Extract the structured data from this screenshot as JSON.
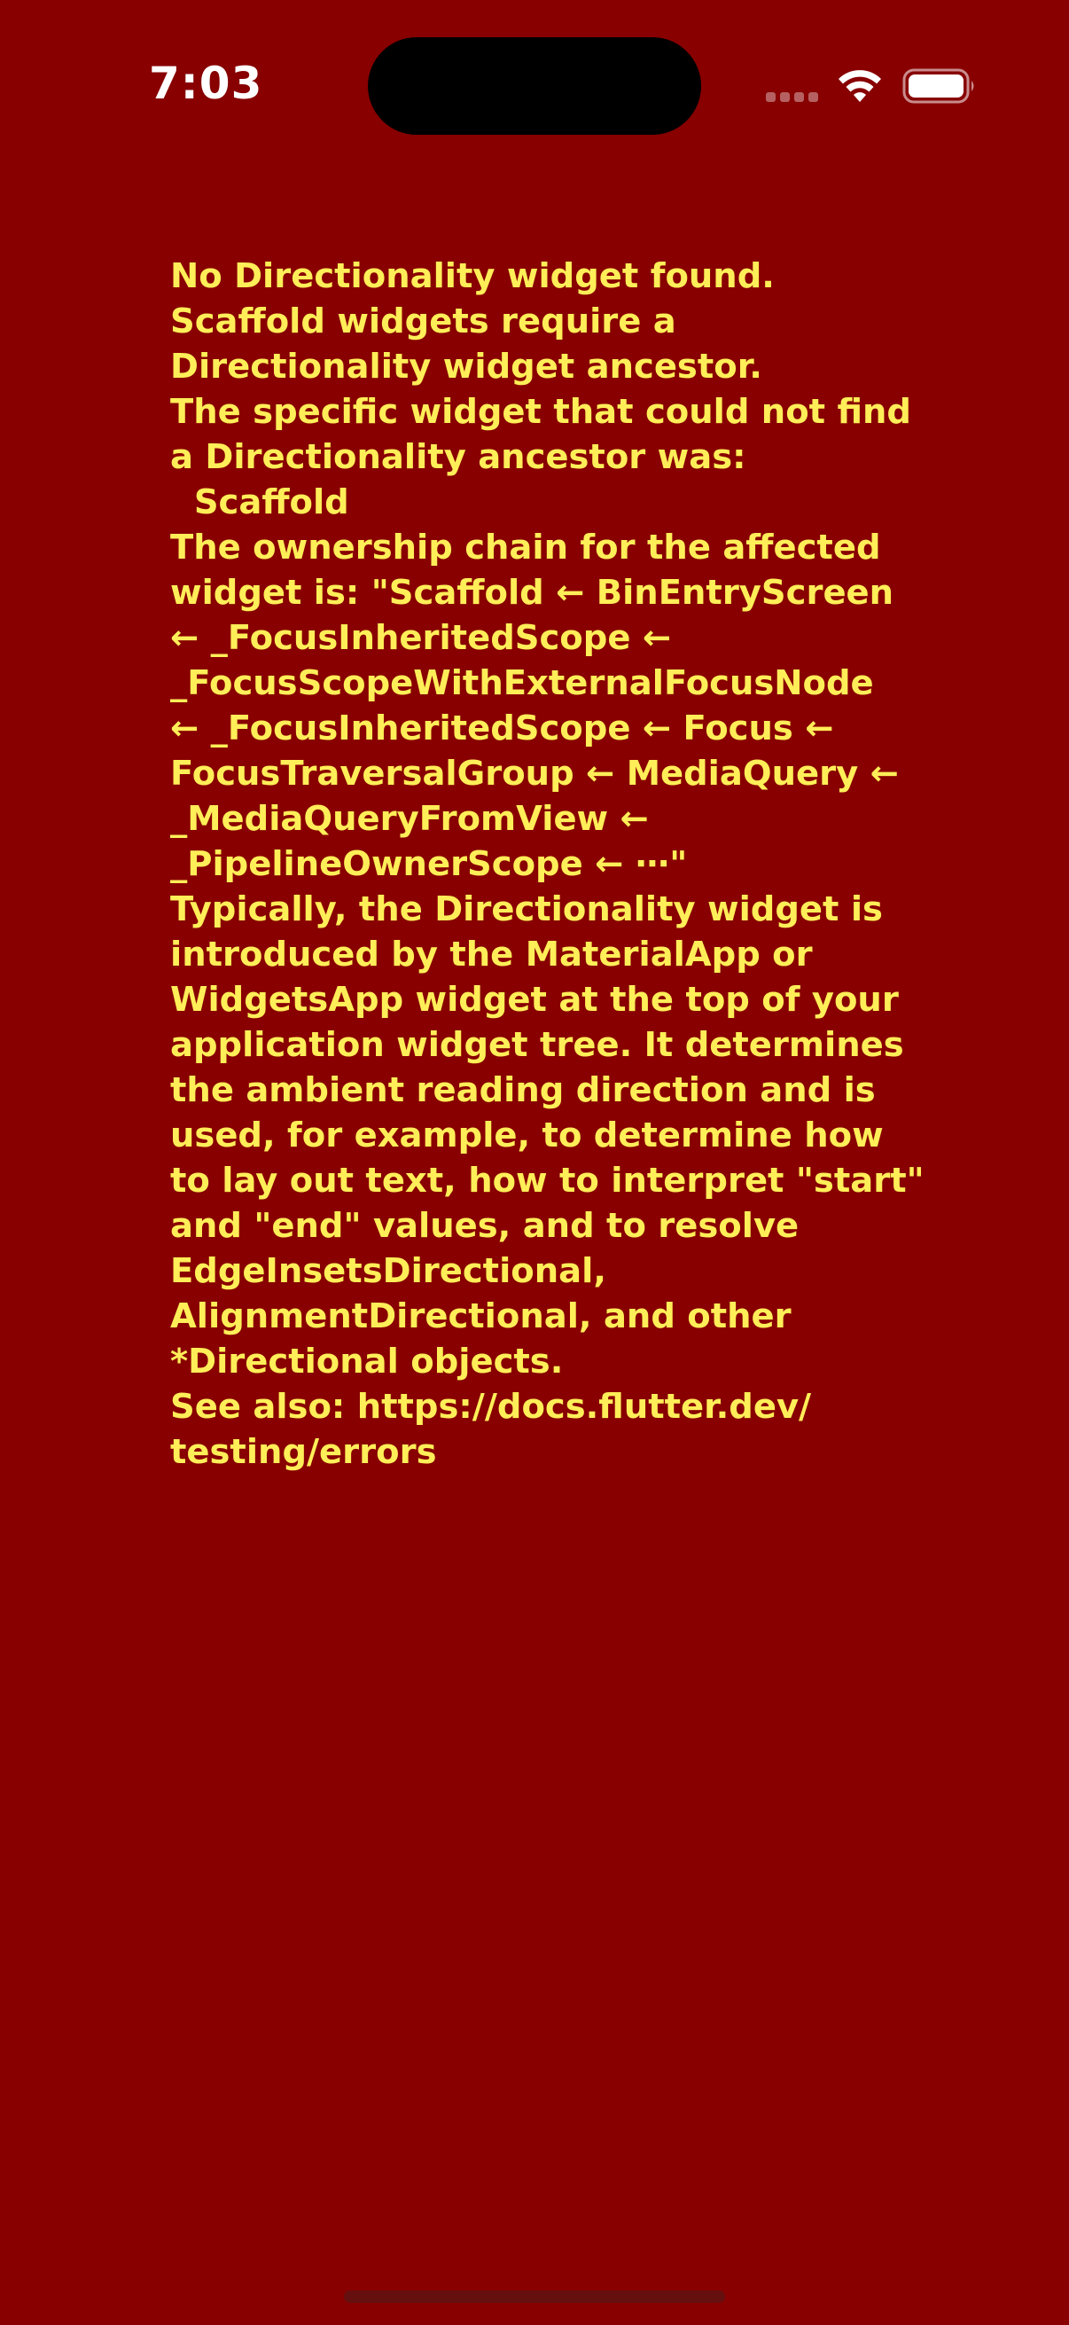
{
  "status_bar": {
    "time": "7:03",
    "icons": [
      "cellular-signal-icon",
      "wifi-icon",
      "battery-icon"
    ],
    "text_color": "#ffffff"
  },
  "error": {
    "background_color": "#880000",
    "text_color": "#ffee58",
    "message": "No Directionality widget found.\nScaffold widgets require a\nDirectionality widget ancestor.\nThe specific widget that could not find\na Directionality ancestor was:\n  Scaffold\nThe ownership chain for the affected\nwidget is: \"Scaffold ← BinEntryScreen\n← _FocusInheritedScope ←\n_FocusScopeWithExternalFocusNode\n← _FocusInheritedScope ← Focus ←\nFocusTraversalGroup ← MediaQuery ←\n_MediaQueryFromView ←\n_PipelineOwnerScope ← ⋯\"\nTypically, the Directionality widget is\nintroduced by the MaterialApp or\nWidgetsApp widget at the top of your\napplication widget tree. It determines\nthe ambient reading direction and is\nused, for example, to determine how\nto lay out text, how to interpret \"start\"\nand \"end\" values, and to resolve\nEdgeInsetsDirectional,\nAlignmentDirectional, and other\n*Directional objects.\nSee also: https://docs.flutter.dev/\ntesting/errors"
  }
}
